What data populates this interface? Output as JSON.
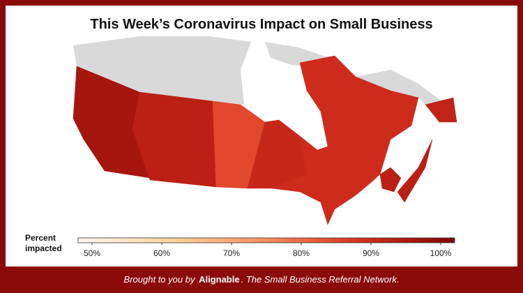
{
  "map": {
    "title": "This Week’s Coronavirus Impact on Small Business",
    "values": [
      96,
      93,
      85,
      91,
      90,
      90,
      93,
      93,
      92
    ],
    "colorbar": {
      "title": "Percent impacted",
      "clim": [
        48,
        102
      ],
      "colors": [
        "#fffaf2",
        "#fdd49e",
        "#fc8d59",
        "#d7301f",
        "#7f0000"
      ],
      "ticks": [
        {
          "value": 50,
          "label": "50%"
        },
        {
          "value": 60,
          "label": "60%"
        },
        {
          "value": 70,
          "label": "70%"
        },
        {
          "value": 80,
          "label": "80%"
        },
        {
          "value": 90,
          "label": "90%"
        },
        {
          "value": 100,
          "label": "100%"
        }
      ]
    },
    "footer": {
      "prefix": "Brought to you by",
      "brand": "Alignable",
      "suffix": ". The Small Business Referral Network."
    }
  }
}
